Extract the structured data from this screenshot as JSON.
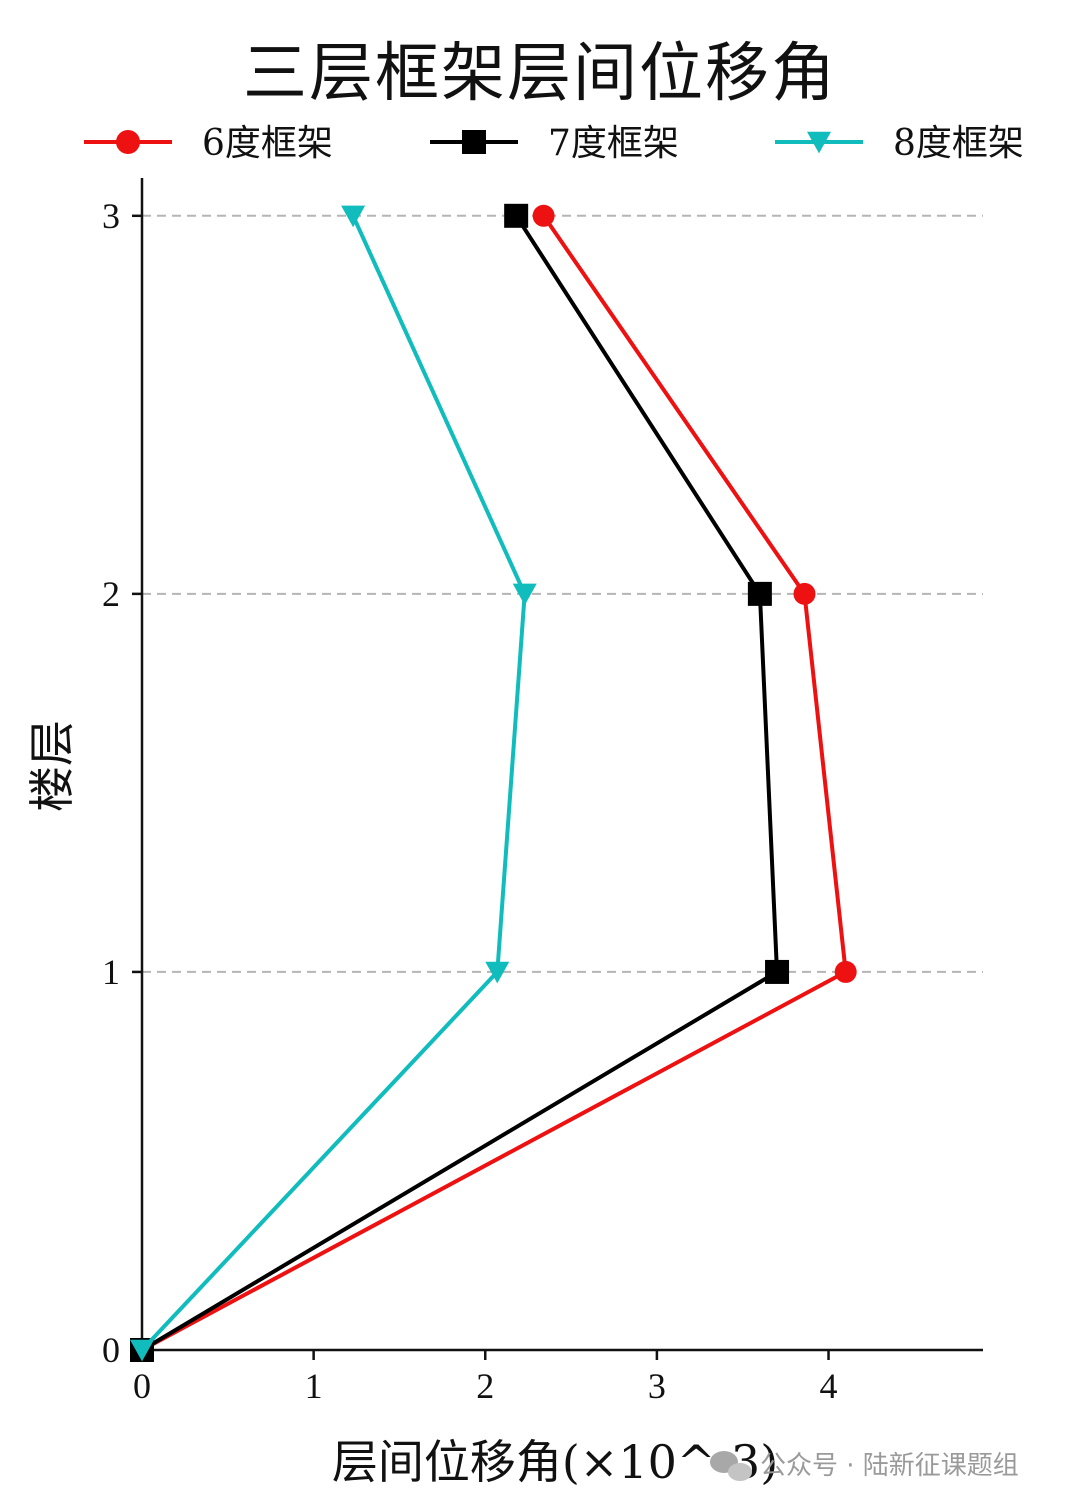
{
  "chart_data": {
    "type": "line",
    "title": "三层框架层间位移角",
    "xlabel": "层间位移角(×10^-3)",
    "ylabel": "楼层",
    "xlim": [
      0,
      4.9
    ],
    "ylim": [
      0,
      3.1
    ],
    "xticks": [
      0,
      1,
      2,
      3,
      4
    ],
    "yticks": [
      0,
      1,
      2,
      3
    ],
    "grid": "horizontal dashed at floors 1, 2, 3",
    "legend_position": "top",
    "series": [
      {
        "name": "6度框架",
        "color": "#ee1111",
        "marker": "circle",
        "points": [
          [
            0,
            0
          ],
          [
            4.1,
            1
          ],
          [
            3.86,
            2
          ],
          [
            2.34,
            3
          ]
        ]
      },
      {
        "name": "7度框架",
        "color": "#000000",
        "marker": "square",
        "points": [
          [
            0,
            0
          ],
          [
            3.7,
            1
          ],
          [
            3.6,
            2
          ],
          [
            2.18,
            3
          ]
        ]
      },
      {
        "name": "8度框架",
        "color": "#10bcbc",
        "marker": "triangle-down",
        "points": [
          [
            0,
            0
          ],
          [
            2.07,
            1
          ],
          [
            2.23,
            2
          ],
          [
            1.23,
            3
          ]
        ]
      }
    ]
  },
  "watermark": {
    "text": "公众号 · 陆新征课题组",
    "icon": "wechat-icon"
  }
}
